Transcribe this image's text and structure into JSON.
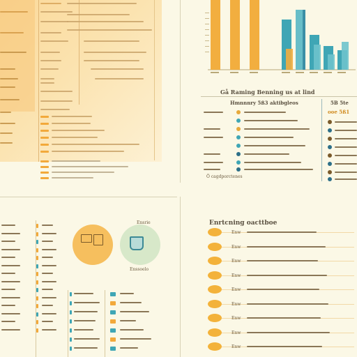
{
  "colors": {
    "background": "#fbf8e6",
    "panel_peach": "#fbe6b8",
    "orange": "#f2a93b",
    "teal": "#3fa6b5",
    "dark_teal": "#2d6f88"
  },
  "top_right": {
    "heading": "Gå Raming Benning us at lind",
    "subheading": "Hmnnnry 5ß3 aktibgleos",
    "side_heading": "5B 5te",
    "side_badge": "ooe 5ß1",
    "footnote": "Ö cagdporctenes"
  },
  "bottom_left": {
    "circle_a_label": "Ensrie",
    "circle_b_label": "Enssoelo"
  },
  "bottom_right": {
    "title": "Enrtcning oacttboe",
    "row_prefix": "Enw"
  },
  "chart_data": {
    "type": "bar",
    "series": [
      {
        "values": [
          100,
          100,
          100,
          72,
          86,
          50,
          34,
          28
        ]
      },
      {
        "values": [
          0,
          0,
          0,
          30,
          86,
          36,
          22,
          40
        ]
      }
    ],
    "ylim": [
      0,
      100
    ]
  }
}
